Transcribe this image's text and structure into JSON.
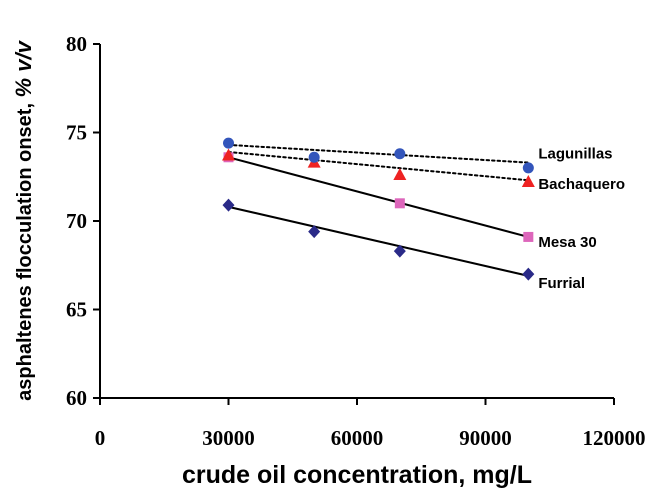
{
  "chart_data": {
    "type": "scatter",
    "title": "",
    "xlabel": "crude oil concentration, mg/L",
    "ylabel_main": "asphaltenes flocculation onset, ",
    "ylabel_unit": "% v/v",
    "xlim": [
      0,
      120000
    ],
    "ylim": [
      60,
      80
    ],
    "x_ticks": [
      "0",
      "30000",
      "60000",
      "90000",
      "120000"
    ],
    "y_ticks": [
      "60",
      "65",
      "70",
      "75",
      "80"
    ],
    "grid": false,
    "legend": "none (inline series labels at right)",
    "series": [
      {
        "name": "Lagunillas",
        "marker": "circle",
        "color": "#3355bb",
        "line": "dotted",
        "x": [
          30000,
          50000,
          70000,
          100000
        ],
        "y": [
          74.4,
          73.6,
          73.8,
          73.0
        ],
        "fit": [
          [
            30000,
            74.3
          ],
          [
            100000,
            73.3
          ]
        ]
      },
      {
        "name": "Bachaquero",
        "marker": "triangle",
        "color": "#ee2222",
        "line": "dotted",
        "x": [
          30000,
          50000,
          70000,
          100000
        ],
        "y": [
          73.7,
          73.3,
          72.6,
          72.2
        ],
        "fit": [
          [
            30000,
            73.9
          ],
          [
            100000,
            72.3
          ]
        ]
      },
      {
        "name": "Mesa 30",
        "marker": "square",
        "color": "#dd66bb",
        "line": "solid",
        "x": [
          30000,
          70000,
          100000
        ],
        "y": [
          73.6,
          71.0,
          69.1
        ],
        "fit": [
          [
            30000,
            73.6
          ],
          [
            100000,
            69.1
          ]
        ]
      },
      {
        "name": "Furrial",
        "marker": "diamond",
        "color": "#2a2a88",
        "line": "solid",
        "x": [
          30000,
          50000,
          70000,
          100000
        ],
        "y": [
          70.9,
          69.4,
          68.3,
          67.0
        ],
        "fit": [
          [
            30000,
            70.8
          ],
          [
            100000,
            66.9
          ]
        ]
      }
    ]
  }
}
